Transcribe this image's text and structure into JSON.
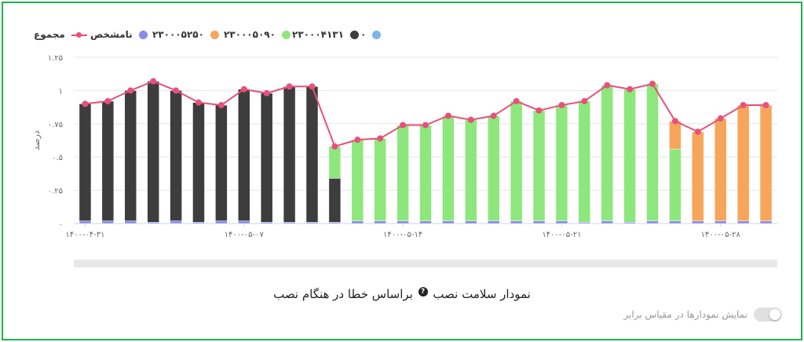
{
  "caption": {
    "title": "نمودار سلامت نصب",
    "help_icon": "help-icon",
    "subtitle": "براساس خطا در هنگام نصب"
  },
  "toggle": {
    "label": "نمایش نمودارها در مقیاس برابر",
    "checked": false
  },
  "colors": {
    "s23000413": "#3d3d3d",
    "s23000509": "#8de77d",
    "s23000525": "#f6a55a",
    "unknown": "#8b8be8",
    "zero": "#7cb5ec",
    "total": "#e8507a",
    "grid": "#e6e6e6",
    "axis_text": "#666666"
  },
  "chart_data": {
    "type": "bar",
    "stacked": true,
    "ylabel": "درصد",
    "y_ticks": [
      "۰",
      "۰.۲۵",
      "۰.۵",
      "۰.۷۵",
      "۱",
      "۱.۲۵"
    ],
    "ylim": [
      0,
      1.25
    ],
    "x_tick_labels": [
      "۱۴۰۰-۰۴-۳۱",
      "۱۴۰۰-۰۵-۰۷",
      "۱۴۰۰-۰۵-۱۴",
      "۱۴۰۰-۰۵-۲۱",
      "۱۴۰۰-۰۵-۲۸"
    ],
    "x_tick_indices": [
      0,
      7,
      14,
      21,
      28
    ],
    "categories": [
      "1400-04-31",
      "1400-05-01",
      "1400-05-02",
      "1400-05-03",
      "1400-05-04",
      "1400-05-05",
      "1400-05-06",
      "1400-05-07",
      "1400-05-08",
      "1400-05-09",
      "1400-05-10",
      "1400-05-11",
      "1400-05-12",
      "1400-05-13",
      "1400-05-14",
      "1400-05-15",
      "1400-05-16",
      "1400-05-17",
      "1400-05-18",
      "1400-05-19",
      "1400-05-20",
      "1400-05-21",
      "1400-05-22",
      "1400-05-23",
      "1400-05-24",
      "1400-05-25",
      "1400-05-26",
      "1400-05-27",
      "1400-05-28",
      "1400-05-29",
      "1400-05-30"
    ],
    "legend_position": "top-right",
    "series": [
      {
        "name": "۰",
        "key": "zero",
        "values": [
          0,
          0,
          0,
          0,
          0,
          0,
          0,
          0,
          0,
          0,
          0,
          0,
          0,
          0,
          0,
          0,
          0,
          0,
          0,
          0,
          0,
          0,
          0,
          0,
          0,
          0,
          0,
          0,
          0,
          0,
          0
        ]
      },
      {
        "name": "۲۳۰۰۰۴۱۳۱",
        "key": "s23000413",
        "values": [
          0.88,
          0.9,
          0.98,
          1.06,
          0.98,
          0.9,
          0.87,
          0.99,
          0.97,
          1.02,
          1.02,
          0.33,
          0,
          0,
          0,
          0,
          0,
          0,
          0,
          0,
          0,
          0,
          0,
          0,
          0,
          0,
          0,
          0,
          0,
          0,
          0
        ]
      },
      {
        "name": "۲۳۰۰۰۵۰۹۰",
        "key": "s23000509",
        "values": [
          0,
          0,
          0,
          0,
          0,
          0,
          0,
          0,
          0,
          0,
          0,
          0.24,
          0.61,
          0.62,
          0.72,
          0.72,
          0.79,
          0.76,
          0.79,
          0.9,
          0.83,
          0.87,
          0.91,
          1.02,
          1.0,
          1.03,
          0.54,
          0,
          0,
          0,
          0
        ]
      },
      {
        "name": "۲۳۰۰۰۵۲۵۰",
        "key": "s23000525",
        "values": [
          0,
          0,
          0,
          0,
          0,
          0,
          0,
          0,
          0,
          0,
          0,
          0,
          0,
          0,
          0,
          0,
          0,
          0,
          0,
          0,
          0,
          0,
          0,
          0,
          0,
          0,
          0.21,
          0.67,
          0.77,
          0.87,
          0.87
        ]
      },
      {
        "name": "نامشخص",
        "key": "unknown",
        "values": [
          0.02,
          0.02,
          0.02,
          0.01,
          0.02,
          0.01,
          0.02,
          0.02,
          0.01,
          0.01,
          0.01,
          0.01,
          0.02,
          0.02,
          0.02,
          0.02,
          0.02,
          0.02,
          0.02,
          0.02,
          0.02,
          0.02,
          0.01,
          0.02,
          0.01,
          0.02,
          0.02,
          0.02,
          0.02,
          0.02,
          0.02
        ]
      },
      {
        "name": "مجموع",
        "key": "total",
        "type": "line",
        "values": [
          0.9,
          0.92,
          1.0,
          1.07,
          1.0,
          0.91,
          0.89,
          1.01,
          0.98,
          1.03,
          1.03,
          0.58,
          0.63,
          0.64,
          0.74,
          0.74,
          0.81,
          0.78,
          0.81,
          0.92,
          0.85,
          0.89,
          0.92,
          1.04,
          1.01,
          1.05,
          0.77,
          0.69,
          0.79,
          0.89,
          0.89
        ]
      }
    ]
  }
}
